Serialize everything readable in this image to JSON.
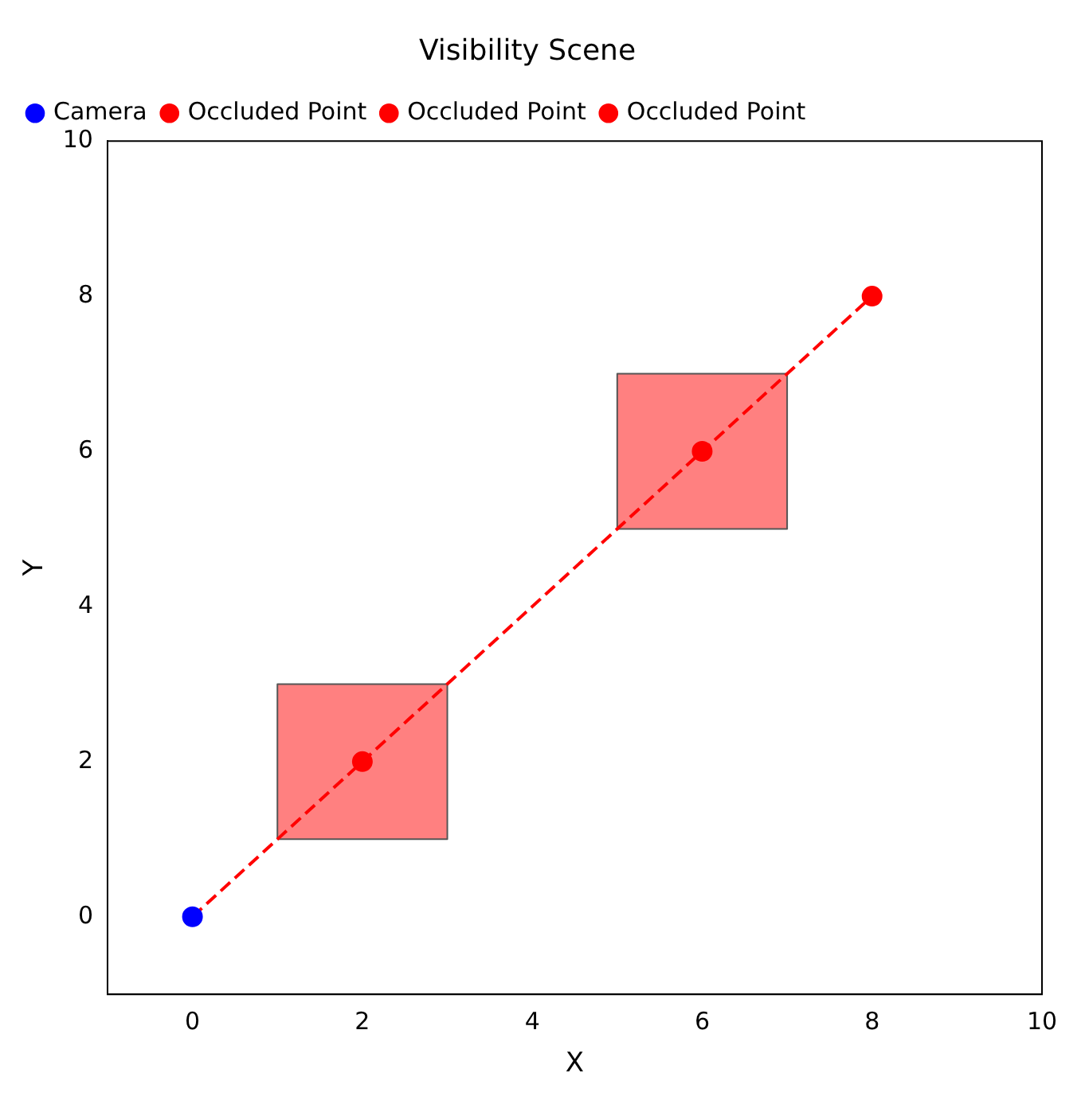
{
  "chart_data": {
    "type": "scatter",
    "title": "Visibility Scene",
    "xlabel": "X",
    "ylabel": "Y",
    "series": [
      {
        "type": "area",
        "x": [
          1,
          1,
          3,
          3,
          1
        ],
        "values": [
          1,
          3,
          3,
          1,
          1
        ],
        "color": "#ff8080"
      },
      {
        "type": "area",
        "x": [
          5,
          5,
          7,
          7,
          5
        ],
        "values": [
          5,
          7,
          7,
          5,
          5
        ],
        "color": "#ff8080"
      },
      {
        "type": "line",
        "x": [
          0,
          8
        ],
        "values": [
          0,
          8
        ],
        "color": "#ff0000",
        "line_style": "dashed"
      },
      {
        "name": "Camera",
        "x": [
          0
        ],
        "values": [
          0
        ],
        "color": "#0000ff",
        "marker": "circle"
      },
      {
        "name": "Occluded Point",
        "x": [
          2
        ],
        "values": [
          2
        ],
        "color": "#ff0000",
        "marker": "circle"
      },
      {
        "name": "Occluded Point",
        "x": [
          6
        ],
        "values": [
          6
        ],
        "color": "#ff0000",
        "marker": "circle"
      },
      {
        "name": "Occluded Point",
        "x": [
          8
        ],
        "values": [
          8
        ],
        "color": "#ff0000",
        "marker": "circle"
      }
    ],
    "marker": "none",
    "xlim": [
      -1,
      10
    ],
    "ylim": [
      -1,
      10
    ],
    "xticks": [
      0,
      2,
      4,
      6,
      8,
      10
    ],
    "yticks": [
      0,
      2,
      4,
      6,
      8,
      10
    ],
    "grid": false,
    "legend": "top left"
  }
}
